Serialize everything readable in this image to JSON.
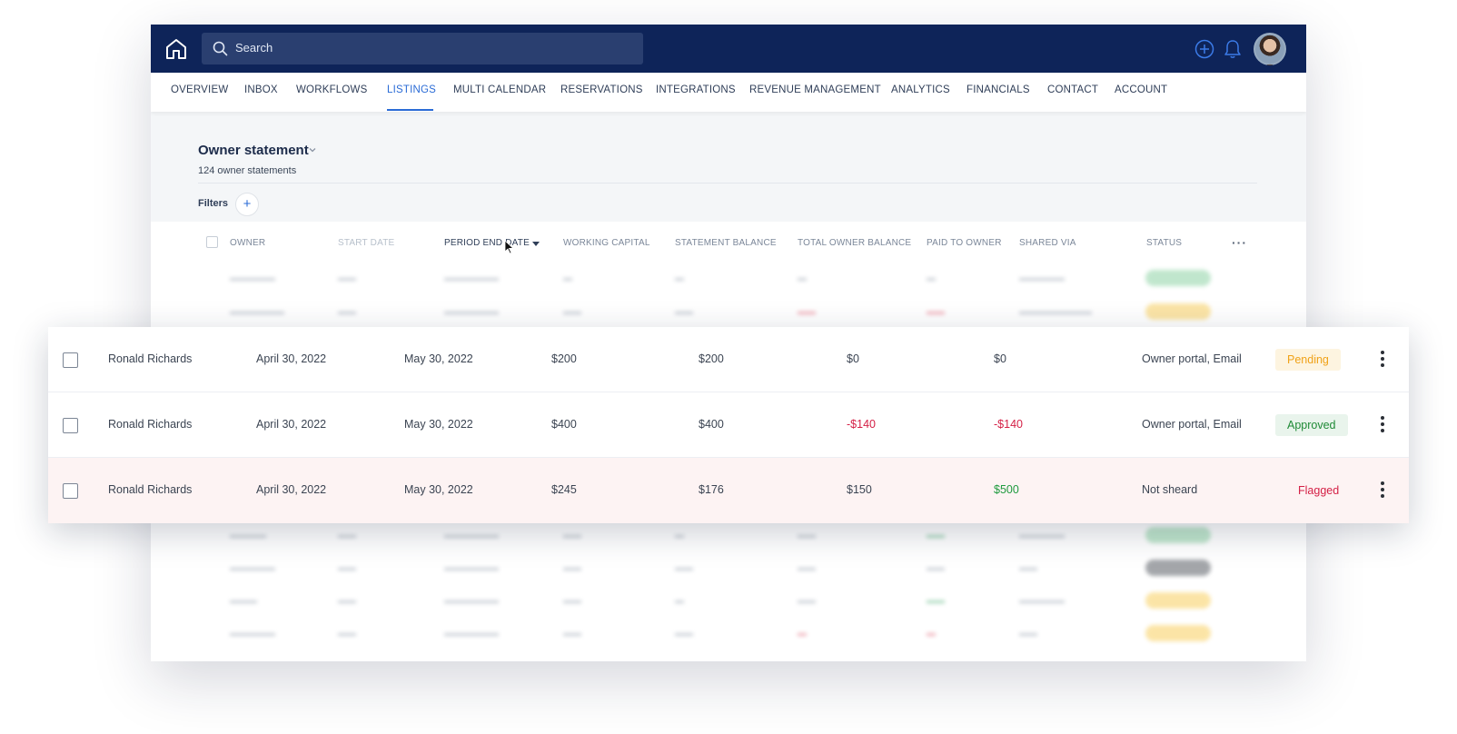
{
  "topbar": {
    "search_placeholder": "Search",
    "brand_color": "#0e2459",
    "icons": [
      "home-icon",
      "search-icon",
      "plus-circle-icon",
      "bell-icon",
      "avatar"
    ]
  },
  "nav": {
    "items": [
      {
        "label": "OVERVIEW"
      },
      {
        "label": "INBOX"
      },
      {
        "label": "WORKFLOWS"
      },
      {
        "label": "LISTINGS",
        "active": true
      },
      {
        "label": "MULTI CALENDAR"
      },
      {
        "label": "RESERVATIONS"
      },
      {
        "label": "INTEGRATIONS"
      },
      {
        "label": "REVENUE MANAGEMENT"
      },
      {
        "label": "ANALYTICS"
      },
      {
        "label": "FINANCIALS"
      },
      {
        "label": "CONTACT"
      },
      {
        "label": "ACCOUNT"
      }
    ],
    "active_color": "#2a6bd6"
  },
  "page": {
    "title": "Owner statement",
    "subtitle": "124 owner statements",
    "filters_label": "Filters",
    "filters_add": "+"
  },
  "table": {
    "headers": {
      "owner": "OWNER",
      "start_date": "START DATE",
      "period_end_date": "PERIOD END DATE",
      "working_capital": "WORKING CAPITAL",
      "statement_balance": "STATEMENT BALANCE",
      "total_owner_balance": "TOTAL OWNER BALANCE",
      "paid_to_owner": "PAID TO OWNER",
      "shared_via": "SHARED VIA",
      "status": "STATUS",
      "more": "···"
    },
    "sorted_column": "period_end_date"
  },
  "rows": [
    {
      "owner": "Ronald Richards",
      "start": "April 30, 2022",
      "end": "May 30, 2022",
      "wc": "$200",
      "sb": "$200",
      "tob": "$0",
      "pto": "$0",
      "shared": "Owner portal, Email",
      "status": "Pending",
      "status_color": "#f0a218"
    },
    {
      "owner": "Ronald Richards",
      "start": "April 30, 2022",
      "end": "May 30, 2022",
      "wc": "$400",
      "sb": "$400",
      "tob": "-$140",
      "pto": "-$140",
      "shared": "Owner portal, Email",
      "status": "Approved",
      "status_color": "#1f8a36"
    },
    {
      "owner": "Ronald Richards",
      "start": "April 30, 2022",
      "end": "May 30, 2022",
      "wc": "$245",
      "sb": "$176",
      "tob": "$150",
      "pto": "$500",
      "shared": "Not sheard",
      "status": "Flagged",
      "status_color": "#d41f45"
    }
  ]
}
